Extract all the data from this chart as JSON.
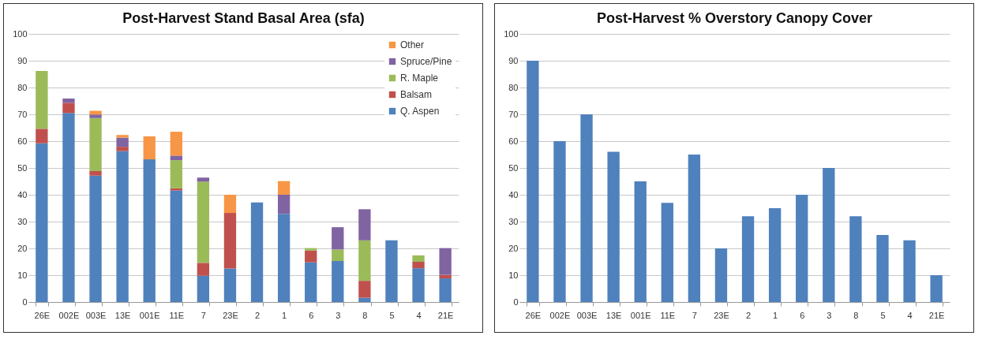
{
  "chart_data": [
    {
      "type": "bar",
      "title": "Post-Harvest Stand Basal Area (sfa)",
      "stacked": true,
      "categories": [
        "26E",
        "002E",
        "003E",
        "13E",
        "001E",
        "11E",
        "7",
        "23E",
        "2",
        "1",
        "6",
        "3",
        "8",
        "5",
        "4",
        "21E"
      ],
      "series": [
        {
          "name": "Q. Aspen",
          "color": "#4f81bd",
          "values": [
            59.2,
            70.5,
            47.1,
            56.3,
            53.2,
            41.6,
            9.8,
            12.5,
            37.1,
            32.9,
            14.8,
            15.3,
            1.6,
            23.0,
            12.6,
            8.8
          ]
        },
        {
          "name": "Balsam",
          "color": "#c0504d",
          "values": [
            5.4,
            3.8,
            1.7,
            1.6,
            null,
            0.8,
            4.8,
            20.7,
            null,
            null,
            4.4,
            null,
            6.3,
            null,
            2.4,
            1.3
          ]
        },
        {
          "name": "R. Maple",
          "color": "#9bbb59",
          "values": [
            21.6,
            null,
            19.8,
            null,
            null,
            10.5,
            30.3,
            null,
            null,
            null,
            0.9,
            4.3,
            15.1,
            null,
            2.4,
            null
          ]
        },
        {
          "name": "Spruce/Pine",
          "color": "#8064a2",
          "values": [
            null,
            1.6,
            1.3,
            3.4,
            null,
            1.7,
            1.5,
            null,
            null,
            7.1,
            null,
            8.3,
            11.6,
            null,
            null,
            10.0
          ]
        },
        {
          "name": "Other",
          "color": "#f79646",
          "values": [
            null,
            null,
            1.4,
            1.0,
            8.6,
            8.9,
            null,
            6.8,
            null,
            5.1,
            null,
            null,
            null,
            null,
            null,
            null
          ]
        }
      ],
      "ylim": [
        0,
        100
      ],
      "yticks": [
        0,
        10,
        20,
        30,
        40,
        50,
        60,
        70,
        80,
        90,
        100
      ],
      "grid": "y",
      "legend": "top right"
    },
    {
      "type": "bar",
      "title": "Post-Harvest % Overstory Canopy Cover",
      "categories": [
        "26E",
        "002E",
        "003E",
        "13E",
        "001E",
        "11E",
        "7",
        "23E",
        "2",
        "1",
        "6",
        "3",
        "8",
        "5",
        "4",
        "21E"
      ],
      "series": [
        {
          "color": "#4f81bd",
          "values": [
            90,
            60,
            70,
            56,
            45,
            37,
            55,
            20,
            32,
            35,
            40,
            50,
            32,
            25,
            23,
            10
          ]
        }
      ],
      "ylim": [
        0,
        100
      ],
      "yticks": [
        0,
        10,
        20,
        30,
        40,
        50,
        60,
        70,
        80,
        90,
        100
      ],
      "grid": "y"
    }
  ]
}
